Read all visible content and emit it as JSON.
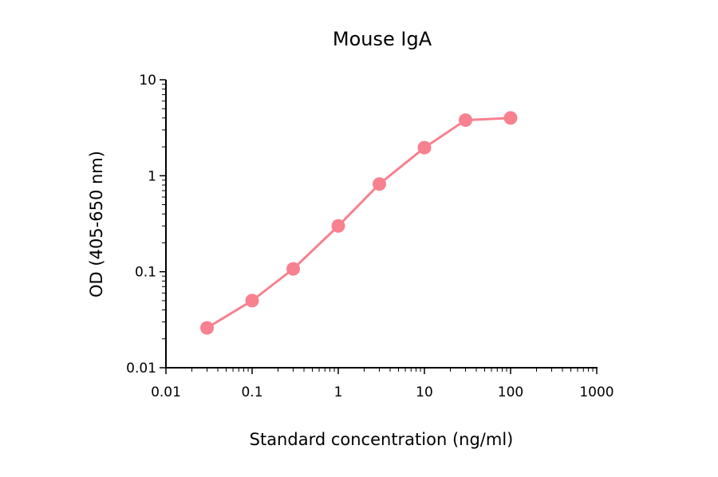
{
  "chart_data": {
    "type": "line",
    "title": "Mouse IgA",
    "xlabel": "Standard concentration (ng/ml)",
    "ylabel": "OD (405-650 nm)",
    "xscale": "log",
    "yscale": "log",
    "xlim": [
      0.01,
      1000
    ],
    "ylim": [
      0.01,
      10
    ],
    "xticks": [
      "0.01",
      "0.1",
      "1",
      "10",
      "100",
      "1000"
    ],
    "yticks": [
      "0.01",
      "0.1",
      "1",
      "10"
    ],
    "grid": false,
    "color": "#F7818F",
    "series": [
      {
        "name": "Mouse IgA",
        "x": [
          0.03,
          0.1,
          0.3,
          1,
          3,
          10,
          30,
          100
        ],
        "y": [
          0.026,
          0.05,
          0.107,
          0.3,
          0.82,
          1.96,
          3.8,
          4.0
        ]
      }
    ]
  }
}
